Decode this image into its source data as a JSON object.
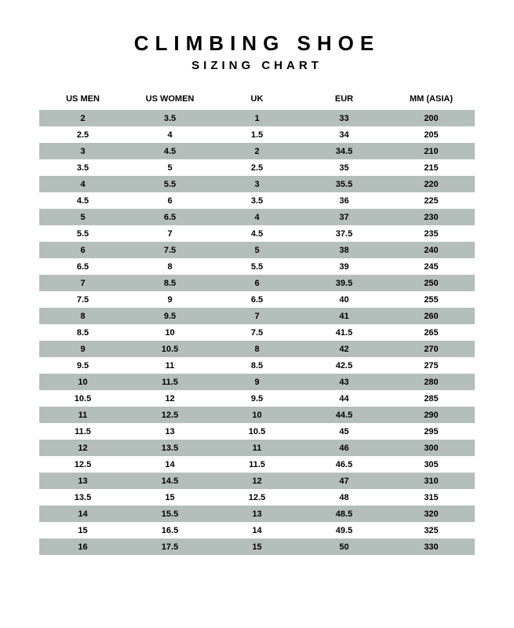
{
  "title": "CLIMBING SHOE",
  "subtitle": "SIZING CHART",
  "colors": {
    "background": "#ffffff",
    "stripe": "#b4bfbc",
    "text": "#000000"
  },
  "table": {
    "columns": [
      "US MEN",
      "US WOMEN",
      "UK",
      "EUR",
      "MM (ASIA)"
    ],
    "rows": [
      [
        "2",
        "3.5",
        "1",
        "33",
        "200"
      ],
      [
        "2.5",
        "4",
        "1.5",
        "34",
        "205"
      ],
      [
        "3",
        "4.5",
        "2",
        "34.5",
        "210"
      ],
      [
        "3.5",
        "5",
        "2.5",
        "35",
        "215"
      ],
      [
        "4",
        "5.5",
        "3",
        "35.5",
        "220"
      ],
      [
        "4.5",
        "6",
        "3.5",
        "36",
        "225"
      ],
      [
        "5",
        "6.5",
        "4",
        "37",
        "230"
      ],
      [
        "5.5",
        "7",
        "4.5",
        "37.5",
        "235"
      ],
      [
        "6",
        "7.5",
        "5",
        "38",
        "240"
      ],
      [
        "6.5",
        "8",
        "5.5",
        "39",
        "245"
      ],
      [
        "7",
        "8.5",
        "6",
        "39.5",
        "250"
      ],
      [
        "7.5",
        "9",
        "6.5",
        "40",
        "255"
      ],
      [
        "8",
        "9.5",
        "7",
        "41",
        "260"
      ],
      [
        "8.5",
        "10",
        "7.5",
        "41.5",
        "265"
      ],
      [
        "9",
        "10.5",
        "8",
        "42",
        "270"
      ],
      [
        "9.5",
        "11",
        "8.5",
        "42.5",
        "275"
      ],
      [
        "10",
        "11.5",
        "9",
        "43",
        "280"
      ],
      [
        "10.5",
        "12",
        "9.5",
        "44",
        "285"
      ],
      [
        "11",
        "12.5",
        "10",
        "44.5",
        "290"
      ],
      [
        "11.5",
        "13",
        "10.5",
        "45",
        "295"
      ],
      [
        "12",
        "13.5",
        "11",
        "46",
        "300"
      ],
      [
        "12.5",
        "14",
        "11.5",
        "46.5",
        "305"
      ],
      [
        "13",
        "14.5",
        "12",
        "47",
        "310"
      ],
      [
        "13.5",
        "15",
        "12.5",
        "48",
        "315"
      ],
      [
        "14",
        "15.5",
        "13",
        "48.5",
        "320"
      ],
      [
        "15",
        "16.5",
        "14",
        "49.5",
        "325"
      ],
      [
        "16",
        "17.5",
        "15",
        "50",
        "330"
      ]
    ]
  }
}
